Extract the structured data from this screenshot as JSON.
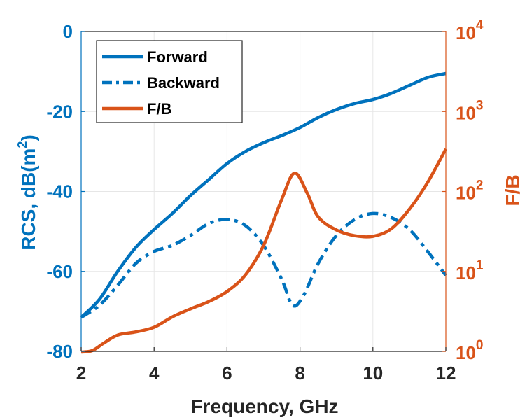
{
  "chart_data": {
    "type": "line",
    "xlabel": "Frequency, GHz",
    "ylabel_left": {
      "base": "RCS, dB(m",
      "sup": "2",
      "end": ")"
    },
    "ylabel_right": "F/B",
    "xlim": [
      2,
      12
    ],
    "ylim_left": [
      -80,
      0
    ],
    "ylim_right": [
      1,
      10000
    ],
    "yscale_right": "log",
    "grid": true,
    "legend_position": "top-left",
    "x_ticks": [
      "2",
      "4",
      "6",
      "8",
      "10",
      "12"
    ],
    "y_left_ticks": [
      "-80",
      "-60",
      "-40",
      "-20",
      "0"
    ],
    "y_right_ticks": [
      {
        "base": "10",
        "exp": "0"
      },
      {
        "base": "10",
        "exp": "1"
      },
      {
        "base": "10",
        "exp": "2"
      },
      {
        "base": "10",
        "exp": "3"
      },
      {
        "base": "10",
        "exp": "4"
      }
    ],
    "colors": {
      "blue": "#0072BD",
      "orange": "#D95319",
      "grid": "#e6e6e6"
    },
    "series": [
      {
        "name": "Forward",
        "axis": "left",
        "style": "solid",
        "x": [
          2,
          2.5,
          3,
          3.5,
          4,
          4.5,
          5,
          5.5,
          6,
          6.5,
          7,
          7.5,
          8,
          8.5,
          9,
          9.5,
          10,
          10.5,
          11,
          11.5,
          12
        ],
        "y": [
          -71.5,
          -67,
          -60,
          -54,
          -49.5,
          -45.5,
          -41,
          -37,
          -33,
          -30,
          -27.8,
          -26,
          -24,
          -21.5,
          -19.5,
          -18,
          -17,
          -15.5,
          -13.5,
          -11.5,
          -10.5
        ]
      },
      {
        "name": "Backward",
        "axis": "left",
        "style": "dashdot",
        "x": [
          2,
          2.5,
          3,
          3.5,
          4,
          4.5,
          5,
          5.5,
          6,
          6.5,
          7,
          7.5,
          7.8,
          8.1,
          8.5,
          9,
          9.5,
          10,
          10.5,
          11,
          11.5,
          12
        ],
        "y": [
          -71.5,
          -68.5,
          -63.5,
          -58,
          -55,
          -53.5,
          -51,
          -48,
          -47,
          -48.5,
          -53.5,
          -62,
          -68.5,
          -66,
          -58,
          -51,
          -47,
          -45.5,
          -46.5,
          -49.5,
          -55,
          -61
        ]
      },
      {
        "name": "F/B",
        "axis": "right",
        "style": "solid",
        "x": [
          2,
          2.3,
          2.6,
          3,
          3.5,
          4,
          4.5,
          5,
          5.5,
          6,
          6.5,
          7,
          7.5,
          7.85,
          8.2,
          8.5,
          9,
          9.5,
          10,
          10.5,
          11,
          11.5,
          12
        ],
        "y": [
          0.98,
          1.02,
          1.25,
          1.6,
          1.75,
          2.0,
          2.7,
          3.4,
          4.2,
          5.6,
          9.0,
          21,
          80,
          170,
          95,
          48,
          33,
          28,
          27.5,
          34,
          60,
          130,
          340
        ]
      }
    ]
  }
}
